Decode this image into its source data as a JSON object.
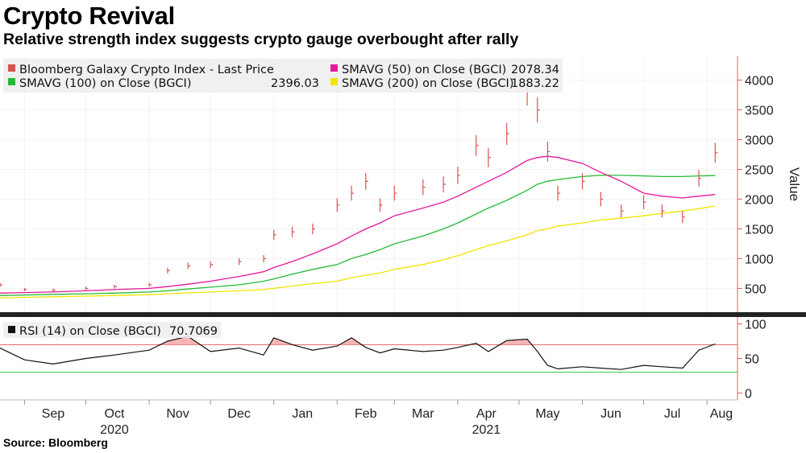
{
  "header": {
    "title": "Crypto Revival",
    "subtitle": "Relative strength index suggests crypto gauge overbought after rally"
  },
  "footer": {
    "source": "Source: Bloomberg"
  },
  "colors": {
    "price": "#d9534f",
    "sma50": "#e6189a",
    "sma100": "#22bb33",
    "sma200": "#f2e400",
    "rsi": "#111111",
    "rsi_upper": "#e06060",
    "rsi_lower": "#33cc33",
    "overbought_fill": "#f4a3a3"
  },
  "chart_data": [
    {
      "type": "line",
      "ylabel": "Value",
      "ylim": [
        100,
        4400
      ],
      "yticks": [
        500,
        1000,
        1500,
        2000,
        2500,
        3000,
        3500,
        4000
      ],
      "x": [
        "2020-08-20",
        "2020-09-01",
        "2020-09-15",
        "2020-10-01",
        "2020-10-15",
        "2020-11-01",
        "2020-11-10",
        "2020-11-20",
        "2020-12-01",
        "2020-12-15",
        "2020-12-27",
        "2021-01-01",
        "2021-01-10",
        "2021-01-20",
        "2021-02-01",
        "2021-02-08",
        "2021-02-15",
        "2021-02-22",
        "2021-03-01",
        "2021-03-15",
        "2021-03-25",
        "2021-04-01",
        "2021-04-10",
        "2021-04-16",
        "2021-04-25",
        "2021-05-05",
        "2021-05-10",
        "2021-05-15",
        "2021-05-20",
        "2021-06-01",
        "2021-06-10",
        "2021-06-20",
        "2021-07-01",
        "2021-07-10",
        "2021-07-20",
        "2021-07-28",
        "2021-08-05"
      ],
      "series": [
        {
          "name": "Bloomberg Galaxy Crypto Index - Last Price",
          "legend_value": "",
          "values": [
            560,
            480,
            470,
            500,
            530,
            560,
            800,
            880,
            900,
            950,
            1000,
            1400,
            1450,
            1500,
            1900,
            2100,
            2300,
            1900,
            2100,
            2200,
            2250,
            2400,
            2900,
            2700,
            3100,
            3800,
            3500,
            2800,
            2100,
            2300,
            2000,
            1800,
            1950,
            1800,
            1700,
            2350,
            2780
          ]
        },
        {
          "name": "SMAVG (50)  on Close (BGCI)",
          "legend_value": "2078.34",
          "values": [
            420,
            430,
            440,
            460,
            480,
            500,
            530,
            570,
            620,
            700,
            780,
            850,
            950,
            1080,
            1250,
            1380,
            1500,
            1600,
            1720,
            1850,
            1950,
            2050,
            2200,
            2300,
            2450,
            2650,
            2700,
            2720,
            2700,
            2600,
            2450,
            2300,
            2100,
            2050,
            2020,
            2050,
            2078
          ]
        },
        {
          "name": "SMAVG (100)  on Close (BGCI)",
          "legend_value": "2396.03",
          "values": [
            380,
            390,
            400,
            410,
            420,
            440,
            460,
            490,
            520,
            560,
            620,
            660,
            740,
            820,
            900,
            1000,
            1070,
            1150,
            1250,
            1380,
            1500,
            1600,
            1750,
            1850,
            1980,
            2150,
            2250,
            2300,
            2330,
            2380,
            2400,
            2400,
            2390,
            2380,
            2380,
            2390,
            2396
          ]
        },
        {
          "name": "SMAVG (200)  on Close (BGCI)",
          "legend_value": "1883.22",
          "values": [
            340,
            350,
            360,
            370,
            380,
            395,
            410,
            425,
            440,
            460,
            480,
            500,
            540,
            580,
            620,
            680,
            720,
            760,
            820,
            900,
            980,
            1050,
            1150,
            1220,
            1300,
            1400,
            1470,
            1500,
            1550,
            1600,
            1650,
            1680,
            1720,
            1760,
            1800,
            1840,
            1883
          ]
        }
      ]
    },
    {
      "type": "line",
      "ylim": [
        -10,
        110
      ],
      "yticks": [
        0,
        50,
        100
      ],
      "reference_lines": [
        70,
        30
      ],
      "x_tick_labels": [
        "Sep",
        "Oct",
        "Nov",
        "Dec",
        "Jan",
        "Feb",
        "Mar",
        "Apr",
        "May",
        "Jun",
        "Jul",
        "Aug"
      ],
      "year_labels": [
        "2020",
        "2021"
      ],
      "x": [
        "2020-08-20",
        "2020-09-01",
        "2020-09-15",
        "2020-10-01",
        "2020-10-15",
        "2020-11-01",
        "2020-11-10",
        "2020-11-20",
        "2020-12-01",
        "2020-12-15",
        "2020-12-27",
        "2021-01-01",
        "2021-01-10",
        "2021-01-20",
        "2021-02-01",
        "2021-02-08",
        "2021-02-15",
        "2021-02-22",
        "2021-03-01",
        "2021-03-15",
        "2021-03-25",
        "2021-04-01",
        "2021-04-10",
        "2021-04-16",
        "2021-04-25",
        "2021-05-05",
        "2021-05-10",
        "2021-05-15",
        "2021-05-20",
        "2021-06-01",
        "2021-06-10",
        "2021-06-20",
        "2021-07-01",
        "2021-07-10",
        "2021-07-20",
        "2021-07-28",
        "2021-08-05"
      ],
      "series": [
        {
          "name": "RSI (14)  on Close (BGCI)",
          "legend_value": "70.7069",
          "values": [
            65,
            48,
            42,
            50,
            55,
            62,
            75,
            82,
            60,
            65,
            55,
            80,
            70,
            62,
            68,
            80,
            66,
            58,
            64,
            60,
            62,
            66,
            72,
            60,
            76,
            78,
            60,
            40,
            35,
            38,
            36,
            34,
            40,
            38,
            36,
            62,
            71
          ]
        }
      ]
    }
  ]
}
